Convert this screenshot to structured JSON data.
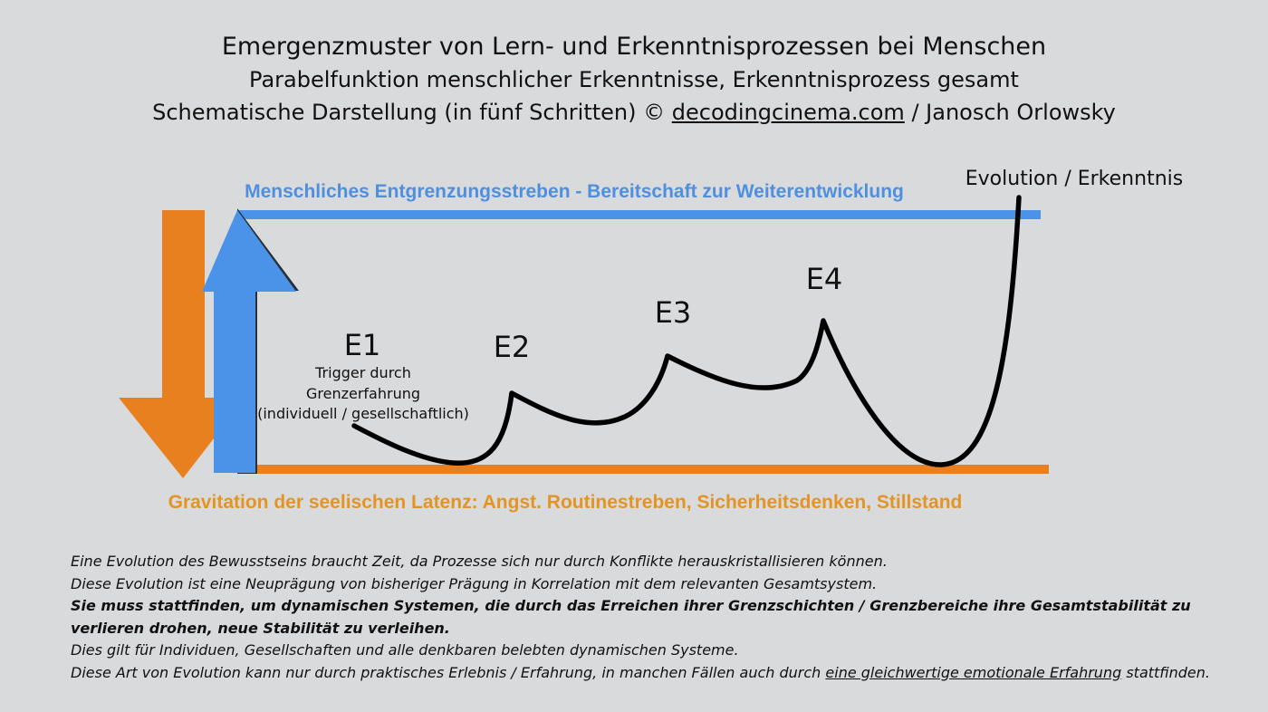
{
  "header": {
    "title": "Emergenzmuster von Lern- und Erkenntnisprozessen bei Menschen",
    "subtitle": "Parabelfunktion menschlicher Erkenntnisse, Erkenntnisprozess gesamt",
    "credit_prefix": "Schematische Darstellung (in fünf Schritten) ©",
    "credit_link": "decodingcinema.com",
    "credit_suffix": "/ Janosch Orlowsky"
  },
  "diagram": {
    "top_label": "Menschliches Entgrenzungsstreben - Bereitschaft zur Weiterentwicklung",
    "bottom_label": "Gravitation der seelischen Latenz: Angst. Routinestreben, Sicherheitsdenken, Stillstand",
    "evolution_label": "Evolution / Erkenntnis",
    "stages": [
      {
        "label": "E1"
      },
      {
        "label": "E2"
      },
      {
        "label": "E3"
      },
      {
        "label": "E4"
      }
    ],
    "trigger_lines": [
      "Trigger durch",
      "Grenzerfahrung",
      "(individuell / gesellschaftlich)"
    ],
    "colors": {
      "blue": "#4a93e9",
      "orange": "#e8801f",
      "top_label": "#4f8fdf",
      "bottom_label": "#e59424",
      "curve": "#000000"
    }
  },
  "caption": {
    "line1": "Eine Evolution des Bewusstseins braucht Zeit, da Prozesse sich nur durch Konflikte herauskristallisieren können.",
    "line2": "Diese Evolution ist eine Neuprägung von bisheriger Prägung in Korrelation mit dem relevanten Gesamtsystem.",
    "line3": "Sie muss stattfinden, um dynamischen Systemen, die durch das Erreichen ihrer Grenzschichten / Grenzbereiche ihre Gesamtstabilität zu verlieren drohen, neue Stabilität zu verleihen.",
    "line4": "Dies gilt für Individuen, Gesellschaften und alle denkbaren belebten dynamischen Systeme.",
    "line5_prefix": "Diese Art von Evolution kann nur durch praktisches Erlebnis / Erfahrung, in manchen Fällen auch durch",
    "line5_link": "eine gleichwertige emotionale Erfahrung",
    "line5_suffix": "stattfinden."
  }
}
